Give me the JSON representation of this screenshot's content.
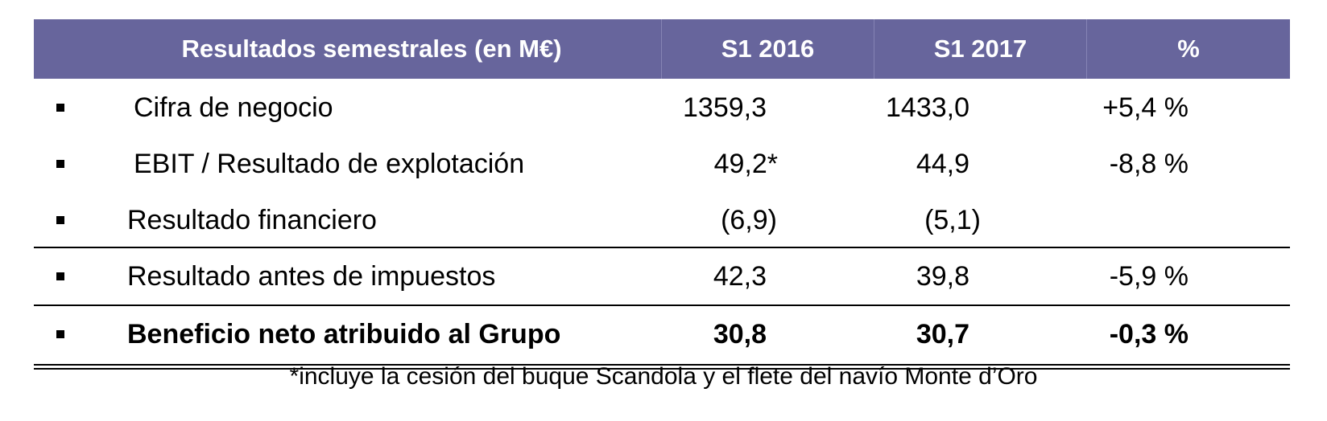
{
  "table": {
    "header": {
      "label": "Resultados semestrales (en M€)",
      "col1": "S1 2016",
      "col2": "S1 2017",
      "col3": "%"
    },
    "rows": [
      {
        "label": "Cifra de negocio",
        "s1_2016": "1359,3",
        "s1_2017": "1433,0",
        "pct": "+5,4 %"
      },
      {
        "label": "EBIT / Resultado de explotación",
        "s1_2016": "49,2*",
        "s1_2017": "44,9",
        "pct": "-8,8 %"
      },
      {
        "label": "Resultado financiero",
        "s1_2016": "(6,9)",
        "s1_2017": "(5,1)",
        "pct": ""
      },
      {
        "label": "Resultado antes de impuestos",
        "s1_2016": "42,3",
        "s1_2017": "39,8",
        "pct": "-5,9 %"
      },
      {
        "label": "Beneficio neto atribuido al Grupo",
        "s1_2016": "30,8",
        "s1_2017": "30,7",
        "pct": "-0,3 %"
      }
    ]
  },
  "footnote": "*incluye la cesión del buque Scandola y el flete del navío Monte d’Oro",
  "colors": {
    "header_bg": "#67659c",
    "header_text": "#ffffff"
  }
}
